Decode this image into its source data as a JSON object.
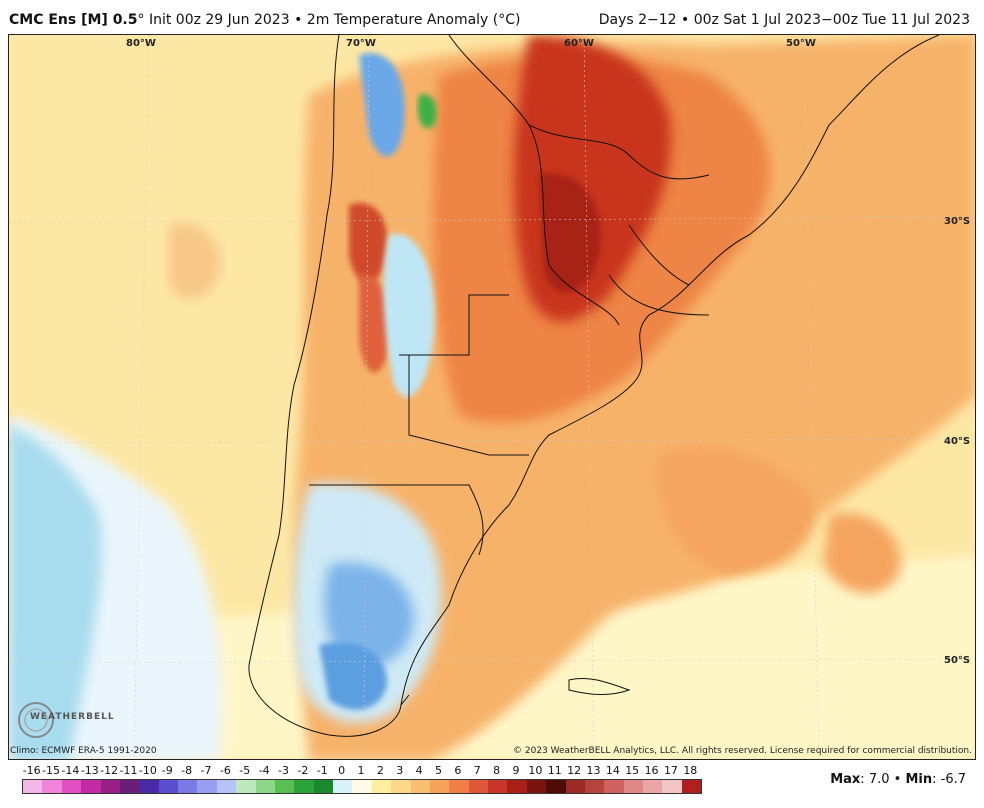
{
  "header": {
    "model": "CMC Ens [M] 0.5",
    "degree": "°",
    "init": "Init 00z 29 Jun 2023",
    "bullet": "•",
    "field": "2m Temperature Anomaly (°C)",
    "range": "Days 2−12 • 00z Sat 1 Jul 2023−00z Tue 11 Jul 2023"
  },
  "map": {
    "lon_labels": [
      "80°W",
      "70°W",
      "60°W",
      "50°W"
    ],
    "lat_labels": [
      "30°S",
      "40°S",
      "50°S"
    ],
    "ocean_color": "#fce7a8",
    "warm_color": "#f4a261",
    "hot_color": "#c0301a",
    "cool_color": "#a6d8ef",
    "cold_color": "#5b9fe0"
  },
  "footer": {
    "climo": "Climo: ECMWF ERA-5 1991-2020",
    "copyright": "© 2023 WeatherBELL Analytics, LLC. All rights reserved. License required for commercial distribution.",
    "logo_text": "WEATHERBELL"
  },
  "colorbar": {
    "ticks": [
      "-16",
      "-15",
      "-14",
      "-13",
      "-12",
      "-11",
      "-10",
      "-9",
      "-8",
      "-7",
      "-6",
      "-5",
      "-4",
      "-3",
      "-2",
      "-1",
      "0",
      "1",
      "2",
      "3",
      "4",
      "5",
      "6",
      "7",
      "8",
      "9",
      "10",
      "11",
      "12",
      "13",
      "14",
      "15",
      "16",
      "17",
      "18"
    ],
    "colors": [
      "#f5b8e6",
      "#ef85d8",
      "#e24fc4",
      "#c22aa6",
      "#9a1f86",
      "#6a1e78",
      "#4a2aa8",
      "#5a4fd0",
      "#7a7ae2",
      "#9a9ef0",
      "#b8c2f7",
      "#bfe8c0",
      "#8ed68a",
      "#56c050",
      "#2aa33a",
      "#1a8a2c",
      "#d8f2fb",
      "#fffbe6",
      "#fdeea0",
      "#fbd98a",
      "#f8c070",
      "#f5a35a",
      "#f08048",
      "#e0583a",
      "#c8372a",
      "#a82018",
      "#7a1410",
      "#4e0c08",
      "#9a2a24",
      "#b8423c",
      "#cf6260",
      "#e08888",
      "#eaa6a6",
      "#f3c6c6",
      "#b02020"
    ]
  },
  "stats": {
    "max_label": "Max",
    "max_value": "7.0",
    "min_label": "Min",
    "min_value": "-6.7",
    "separator": "•"
  }
}
